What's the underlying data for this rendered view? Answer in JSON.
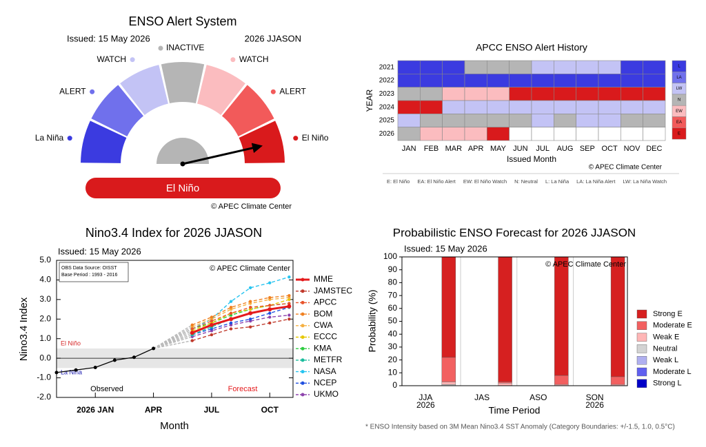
{
  "chart_data": [
    {
      "type": "gauge",
      "title": "ENSO Alert System",
      "issued": "Issued: 15 May 2026",
      "season": "2026 JJASON",
      "segments": [
        {
          "label": "La Niña",
          "color": "#3b3be0"
        },
        {
          "label": "ALERT",
          "color": "#7070ec"
        },
        {
          "label": "WATCH",
          "color": "#c3c3f5"
        },
        {
          "label": "INACTIVE",
          "color": "#b5b5b5"
        },
        {
          "label": "WATCH",
          "color": "#fbbcbf"
        },
        {
          "label": "ALERT",
          "color": "#f25a5a"
        },
        {
          "label": "El Niño",
          "color": "#d91a1c"
        }
      ],
      "status": "El Niño",
      "copyright": "© APEC Climate Center"
    },
    {
      "type": "heatmap",
      "title": "APCC ENSO Alert History",
      "ylabel": "YEAR",
      "xlabel": "Issued Month",
      "years": [
        "2021",
        "2022",
        "2023",
        "2024",
        "2025",
        "2026"
      ],
      "months": [
        "JAN",
        "FEB",
        "MAR",
        "APR",
        "MAY",
        "JUN",
        "JUL",
        "AUG",
        "SEP",
        "OCT",
        "NOV",
        "DEC"
      ],
      "cells": [
        [
          "L",
          "L",
          "L",
          "N",
          "N",
          "N",
          "LW",
          "LW",
          "LW",
          "LW",
          "L",
          "L"
        ],
        [
          "L",
          "L",
          "L",
          "L",
          "L",
          "L",
          "L",
          "L",
          "L",
          "L",
          "L",
          "L"
        ],
        [
          "N",
          "N",
          "EW",
          "EW",
          "EW",
          "E",
          "E",
          "E",
          "E",
          "E",
          "E",
          "E"
        ],
        [
          "E",
          "E",
          "LW",
          "LW",
          "LW",
          "LW",
          "LW",
          "LW",
          "LW",
          "LW",
          "LW",
          "LW"
        ],
        [
          "LW",
          "N",
          "N",
          "N",
          "N",
          "N",
          "LW",
          "N",
          "LW",
          "LW",
          "N",
          "N"
        ],
        [
          "N",
          "EW",
          "EW",
          "EW",
          "E",
          null,
          null,
          null,
          null,
          null,
          null,
          null
        ]
      ],
      "legend": [
        {
          "code": "L",
          "color": "#3b3be0"
        },
        {
          "code": "LA",
          "color": "#7070ec"
        },
        {
          "code": "LW",
          "color": "#c3c3f5"
        },
        {
          "code": "N",
          "color": "#b5b5b5"
        },
        {
          "code": "EW",
          "color": "#fbbcbf"
        },
        {
          "code": "EA",
          "color": "#f25a5a"
        },
        {
          "code": "E",
          "color": "#d91a1c"
        }
      ],
      "copyright": "© APEC Climate Center",
      "key": [
        "E: El Niño",
        "EA: El Niño Alert",
        "EW: El Niño Watch",
        "N: Neutral",
        "L: La Niña",
        "LA: La Niña Alert",
        "LW: La Niña Watch"
      ]
    },
    {
      "type": "line",
      "title": "Nino3.4 Index for 2026 JJASON",
      "issued": "Issued: 15 May 2026",
      "source_note": [
        "OBS Data Source: OISST",
        "Base Period : 1993 - 2016"
      ],
      "copyright": "© APEC Climate Center",
      "ylabel": "Nino3.4 Index",
      "xlabel": "Month",
      "xlim": [
        -2,
        10.2
      ],
      "xticks": [
        {
          "value": 0,
          "label": "2026 JAN"
        },
        {
          "value": 3,
          "label": "APR"
        },
        {
          "value": 6,
          "label": "JUL"
        },
        {
          "value": 9,
          "label": "OCT"
        }
      ],
      "ylim": [
        -2,
        5
      ],
      "yticks": [
        {
          "value": -2,
          "label": "-2.0"
        },
        {
          "value": -1,
          "label": "-1.0"
        },
        {
          "value": 0,
          "label": "0.0"
        },
        {
          "value": 1,
          "label": "1.0"
        },
        {
          "value": 2,
          "label": "2.0"
        },
        {
          "value": 3,
          "label": "3.0"
        },
        {
          "value": 4,
          "label": "4.0"
        },
        {
          "value": 5,
          "label": "5.0"
        }
      ],
      "thresholds": [
        {
          "value": 0.5,
          "label": "El Niño",
          "color": "#d62728"
        },
        {
          "value": -0.5,
          "label": "La Niña",
          "color": "#1a1ab0"
        }
      ],
      "observed": {
        "label": "Observed",
        "color": "#000000",
        "x": [
          -2,
          -1,
          0,
          1,
          2,
          3
        ],
        "values": [
          -0.73,
          -0.6,
          -0.47,
          -0.1,
          0.05,
          0.5
        ]
      },
      "forecast_label": "Forecast",
      "x": [
        5,
        6,
        7,
        8,
        9,
        10
      ],
      "series": [
        {
          "name": "MME",
          "color": "#e41a1c",
          "line_style": "solid",
          "values": [
            1.3,
            1.7,
            2.0,
            2.3,
            2.5,
            2.65
          ]
        },
        {
          "name": "JAMSTEC",
          "color": "#c0392b",
          "line_style": "dashed",
          "values": [
            0.9,
            1.2,
            1.5,
            1.6,
            1.8,
            2.0
          ]
        },
        {
          "name": "APCC",
          "color": "#e8532b",
          "line_style": "dashed",
          "values": [
            1.5,
            1.9,
            2.3,
            2.6,
            2.7,
            2.8
          ]
        },
        {
          "name": "BOM",
          "color": "#f08020",
          "line_style": "dashed",
          "values": [
            1.7,
            2.1,
            2.6,
            2.9,
            3.1,
            3.2
          ]
        },
        {
          "name": "CWA",
          "color": "#f5b041",
          "line_style": "dashed",
          "values": [
            1.6,
            2.0,
            2.5,
            2.8,
            3.0,
            3.1
          ]
        },
        {
          "name": "ECCC",
          "color": "#e6c800",
          "line_style": "dashed",
          "values": [
            1.4,
            1.8,
            2.3,
            2.5,
            2.7,
            3.0
          ]
        },
        {
          "name": "KMA",
          "color": "#2ecc40",
          "line_style": "dashed",
          "values": [
            1.5,
            1.8,
            2.2,
            2.5,
            2.7,
            2.8
          ]
        },
        {
          "name": "METFR",
          "color": "#1abc9c",
          "line_style": "dashed",
          "values": [
            1.2,
            1.6,
            2.0,
            2.3,
            2.5,
            2.6
          ]
        },
        {
          "name": "NASA",
          "color": "#27c4f0",
          "line_style": "dashed",
          "values": [
            1.5,
            2.0,
            2.9,
            3.6,
            3.85,
            4.15
          ]
        },
        {
          "name": "NCEP",
          "color": "#1f4fe0",
          "line_style": "dashed",
          "values": [
            1.2,
            1.5,
            1.8,
            2.0,
            2.3,
            2.6
          ]
        },
        {
          "name": "UKMO",
          "color": "#8e44ad",
          "line_style": "dashed",
          "values": [
            1.1,
            1.4,
            1.7,
            1.9,
            2.1,
            2.2
          ]
        }
      ]
    },
    {
      "type": "stacked_bar",
      "title": "Probabilistic ENSO Forecast for 2026 JJASON",
      "issued": "Issued: 15 May 2026",
      "copyright": "© APEC Climate Center",
      "ylabel": "Probability (%)",
      "xlabel": "Time Period",
      "categories": [
        [
          "JJA",
          "2026"
        ],
        [
          "JAS"
        ],
        [
          "ASO"
        ],
        [
          "SON",
          "2026"
        ]
      ],
      "ylim": [
        0,
        100
      ],
      "yticks": [
        0,
        10,
        20,
        30,
        40,
        50,
        60,
        70,
        80,
        90,
        100
      ],
      "series": [
        {
          "name": "Strong E",
          "color": "#d62020",
          "values": [
            78,
            97,
            92,
            93
          ]
        },
        {
          "name": "Moderate E",
          "color": "#f26060",
          "values": [
            19,
            1,
            7,
            6
          ]
        },
        {
          "name": "Weak E",
          "color": "#ffb6b6",
          "values": [
            2,
            2,
            1,
            1
          ]
        },
        {
          "name": "Neutral",
          "color": "#d3d3d3",
          "values": [
            1,
            0,
            0,
            0
          ]
        },
        {
          "name": "Weak L",
          "color": "#b0b0f0",
          "values": [
            0,
            0,
            0,
            0
          ]
        },
        {
          "name": "Moderate L",
          "color": "#6060f0",
          "values": [
            0,
            0,
            0,
            0
          ]
        },
        {
          "name": "Strong L",
          "color": "#0000c8",
          "values": [
            0,
            0,
            0,
            0
          ]
        }
      ],
      "footnote": "* ENSO Intensity based on 3M Mean Nino3.4 SST Anomaly (Category Boundaries: +/-1.5, 1.0, 0.5°C)"
    }
  ]
}
